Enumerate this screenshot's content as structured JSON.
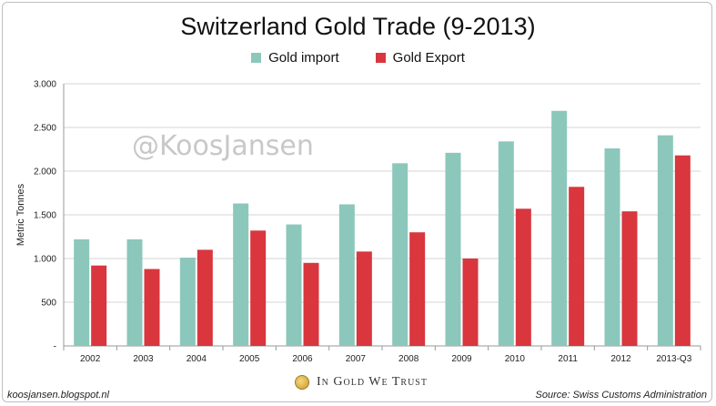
{
  "chart_data": {
    "type": "bar",
    "title": "Switzerland Gold Trade (9-2013)",
    "ylabel": "Metric Tonnes",
    "xlabel": "",
    "ylim": [
      0,
      3000
    ],
    "yticks": [
      "-",
      "500",
      "1.000",
      "1.500",
      "2.000",
      "2.500",
      "3.000"
    ],
    "ytick_values": [
      0,
      500,
      1000,
      1500,
      2000,
      2500,
      3000
    ],
    "grid": true,
    "legend_position": "top-center",
    "categories": [
      "2002",
      "2003",
      "2004",
      "2005",
      "2006",
      "2007",
      "2008",
      "2009",
      "2010",
      "2011",
      "2012",
      "2013-Q3"
    ],
    "series": [
      {
        "name": "Gold import",
        "color": "#8cc7bb",
        "values": [
          1220,
          1220,
          1010,
          1630,
          1390,
          1620,
          2090,
          2210,
          2340,
          2690,
          2260,
          2410
        ]
      },
      {
        "name": "Gold Export",
        "color": "#d9363e",
        "values": [
          920,
          880,
          1100,
          1320,
          950,
          1080,
          1300,
          1000,
          1570,
          1820,
          1540,
          2180
        ]
      }
    ]
  },
  "watermark": "@KoosJansen",
  "footer": {
    "left": "koosjansen.blogspot.nl",
    "right": "Source: Swiss Customs Administration",
    "brand": "In Gold We Trust"
  }
}
